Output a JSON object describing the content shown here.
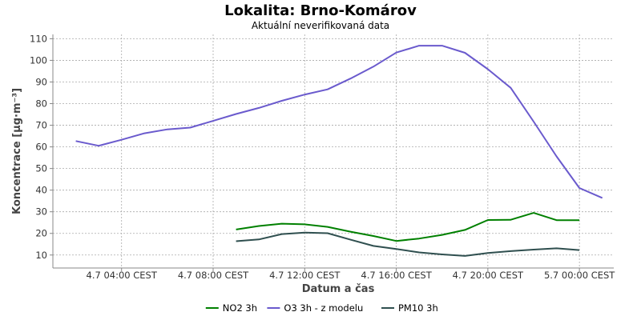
{
  "chart_data": {
    "type": "line",
    "title": "Lokalita: Brno-Komárov",
    "subtitle": "Aktuální neverifikovaná data",
    "xlabel": "Datum a čas",
    "ylabel": "Koncentrace [µg·m⁻³]",
    "ylim": [
      4,
      112
    ],
    "xlim": [
      1,
      25.5
    ],
    "x_tick_values": [
      4,
      8,
      12,
      16,
      20,
      24
    ],
    "x_tick_labels": [
      "4.7 04:00 CEST",
      "4.7 08:00 CEST",
      "4.7 12:00 CEST",
      "4.7 16:00 CEST",
      "4.7 20:00 CEST",
      "5.7 00:00 CEST"
    ],
    "y_ticks": [
      10,
      20,
      30,
      40,
      50,
      60,
      70,
      80,
      90,
      100,
      110
    ],
    "grid": true,
    "legend_position": "bottom",
    "series": [
      {
        "name": "NO2 3h",
        "color": "#008000",
        "x": [
          9,
          10,
          11,
          12,
          13,
          14,
          15,
          16,
          17,
          18,
          19,
          20,
          21,
          22,
          23,
          24,
          25
        ],
        "values": [
          21.8,
          23.4,
          24.5,
          24.2,
          23.0,
          20.8,
          18.8,
          16.5,
          17.6,
          19.3,
          21.6,
          26.2,
          26.3,
          29.5,
          26.1,
          26.1,
          null
        ]
      },
      {
        "name": "O3 3h - z modelu",
        "color": "#6a5acd",
        "x": [
          2,
          3,
          4,
          5,
          6,
          7,
          8,
          9,
          10,
          11,
          12,
          13,
          14,
          15,
          16,
          17,
          18,
          19,
          20,
          21,
          22,
          23,
          24,
          25
        ],
        "values": [
          62.7,
          60.5,
          63.3,
          66.3,
          68.1,
          68.9,
          72.0,
          75.2,
          78.0,
          81.3,
          84.2,
          86.6,
          91.6,
          97.1,
          103.6,
          106.8,
          106.8,
          103.5,
          95.9,
          87.3,
          71.7,
          55.6,
          41.0,
          36.4
        ]
      },
      {
        "name": "PM10 3h",
        "color": "#2f4f4f",
        "x": [
          9,
          10,
          11,
          12,
          13,
          14,
          15,
          16,
          17,
          18,
          19,
          20,
          21,
          22,
          23,
          24,
          25
        ],
        "values": [
          16.4,
          17.2,
          19.7,
          20.4,
          20.1,
          17.1,
          14.2,
          12.8,
          11.2,
          10.3,
          9.6,
          10.9,
          11.8,
          12.5,
          13.1,
          12.3,
          null
        ]
      }
    ]
  }
}
